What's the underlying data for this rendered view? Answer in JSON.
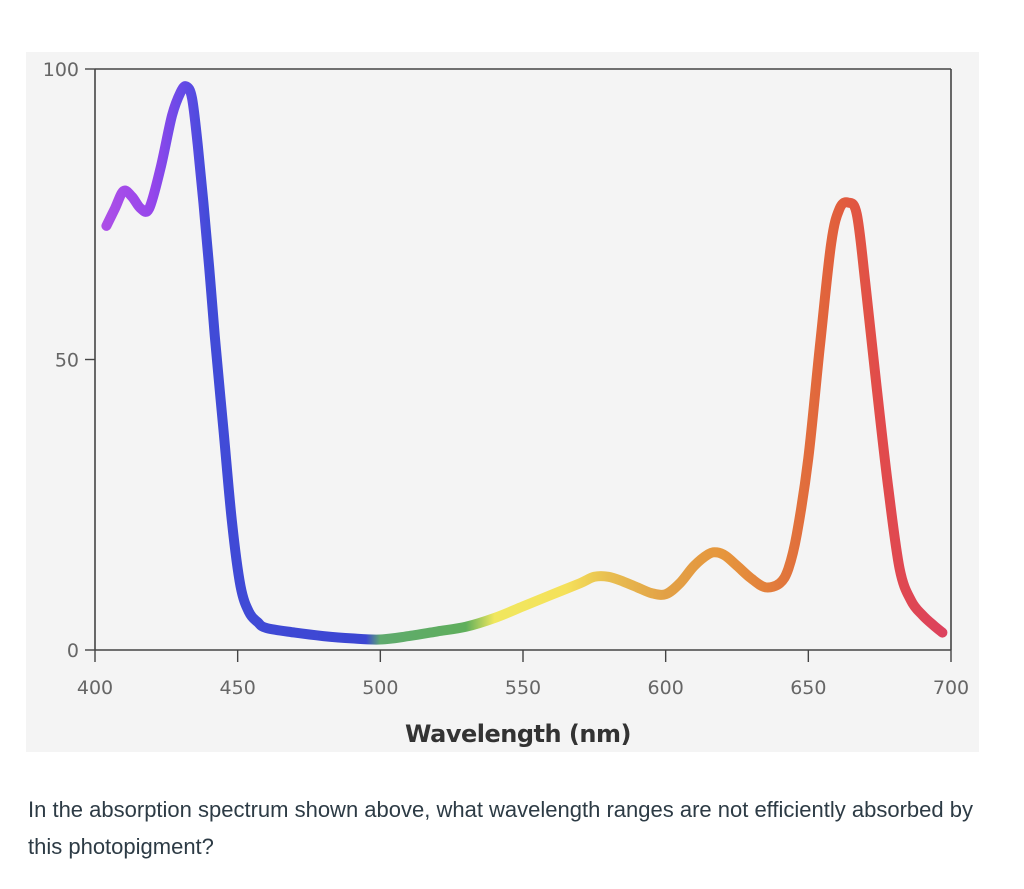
{
  "chart_data": {
    "type": "line",
    "xlabel": "Wavelength (nm)",
    "ylabel": "",
    "xlim": [
      400,
      700
    ],
    "ylim": [
      0,
      100
    ],
    "x_ticks": [
      400,
      450,
      500,
      550,
      600,
      650,
      700
    ],
    "y_ticks": [
      0,
      50,
      100
    ],
    "grid": false,
    "legend": "none",
    "line_coloring": "visible-spectrum gradient along the curve",
    "series": [
      {
        "x": [
          404,
          407,
          410,
          413,
          416,
          419,
          423,
          427,
          430,
          432,
          434,
          436,
          438,
          440,
          442,
          445,
          448,
          451,
          454,
          457,
          460,
          470,
          480,
          490,
          500,
          510,
          520,
          530,
          540,
          550,
          560,
          570,
          575,
          580,
          585,
          590,
          595,
          600,
          605,
          610,
          615,
          618,
          621,
          625,
          630,
          635,
          640,
          643,
          646,
          650,
          654,
          658,
          661,
          664,
          667,
          670,
          674,
          678,
          682,
          686,
          690,
          694,
          697
        ],
        "y": [
          73,
          76,
          79,
          78,
          76,
          76,
          83,
          92,
          96,
          97,
          95,
          87,
          77,
          66,
          54,
          38,
          22,
          11,
          6.5,
          4.8,
          3.8,
          3.0,
          2.4,
          2.0,
          1.8,
          2.4,
          3.2,
          4.0,
          5.5,
          7.5,
          9.5,
          11.5,
          12.6,
          12.6,
          11.8,
          10.8,
          9.8,
          9.6,
          11.5,
          14.5,
          16.5,
          16.8,
          16.2,
          14.5,
          12.3,
          10.8,
          11.5,
          14.0,
          20.0,
          33.0,
          52.0,
          70.0,
          76.0,
          77.0,
          75.0,
          63.0,
          45.0,
          28.0,
          14.0,
          8.5,
          6.0,
          4.2,
          3.0
        ]
      }
    ]
  },
  "question_text": "In the absorption spectrum shown above, what wavelength ranges are not efficiently absorbed by this photopigment?",
  "colors": {
    "panel_background": "#f4f4f4",
    "axis": "#444444",
    "question_text": "#2d3b45"
  }
}
